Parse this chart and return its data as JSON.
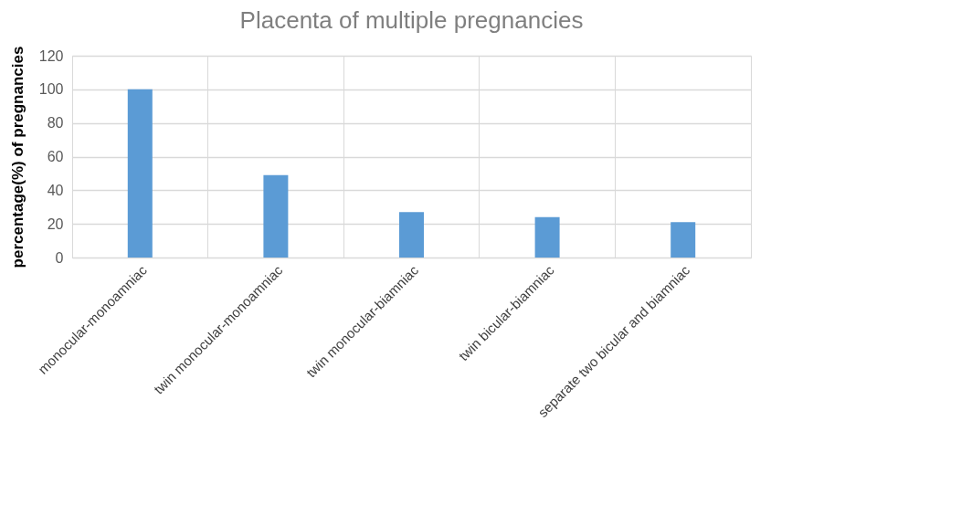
{
  "chart_data": {
    "type": "bar",
    "title": "Placenta of multiple pregnancies",
    "ylabel": "percentage(%) of pregnancies",
    "categories": [
      "monocular-monoamniac",
      "twin  monocular-monoamniac",
      "twin monocular-biamniac",
      "twin bicular-biamniac",
      "separate two bicular and biamniac"
    ],
    "values": [
      100,
      49,
      27,
      24,
      21
    ],
    "color": "#5b9bd5",
    "ylim": [
      0,
      120
    ],
    "yticks": [
      0,
      20,
      40,
      60,
      80,
      100,
      120
    ],
    "grid": true
  }
}
